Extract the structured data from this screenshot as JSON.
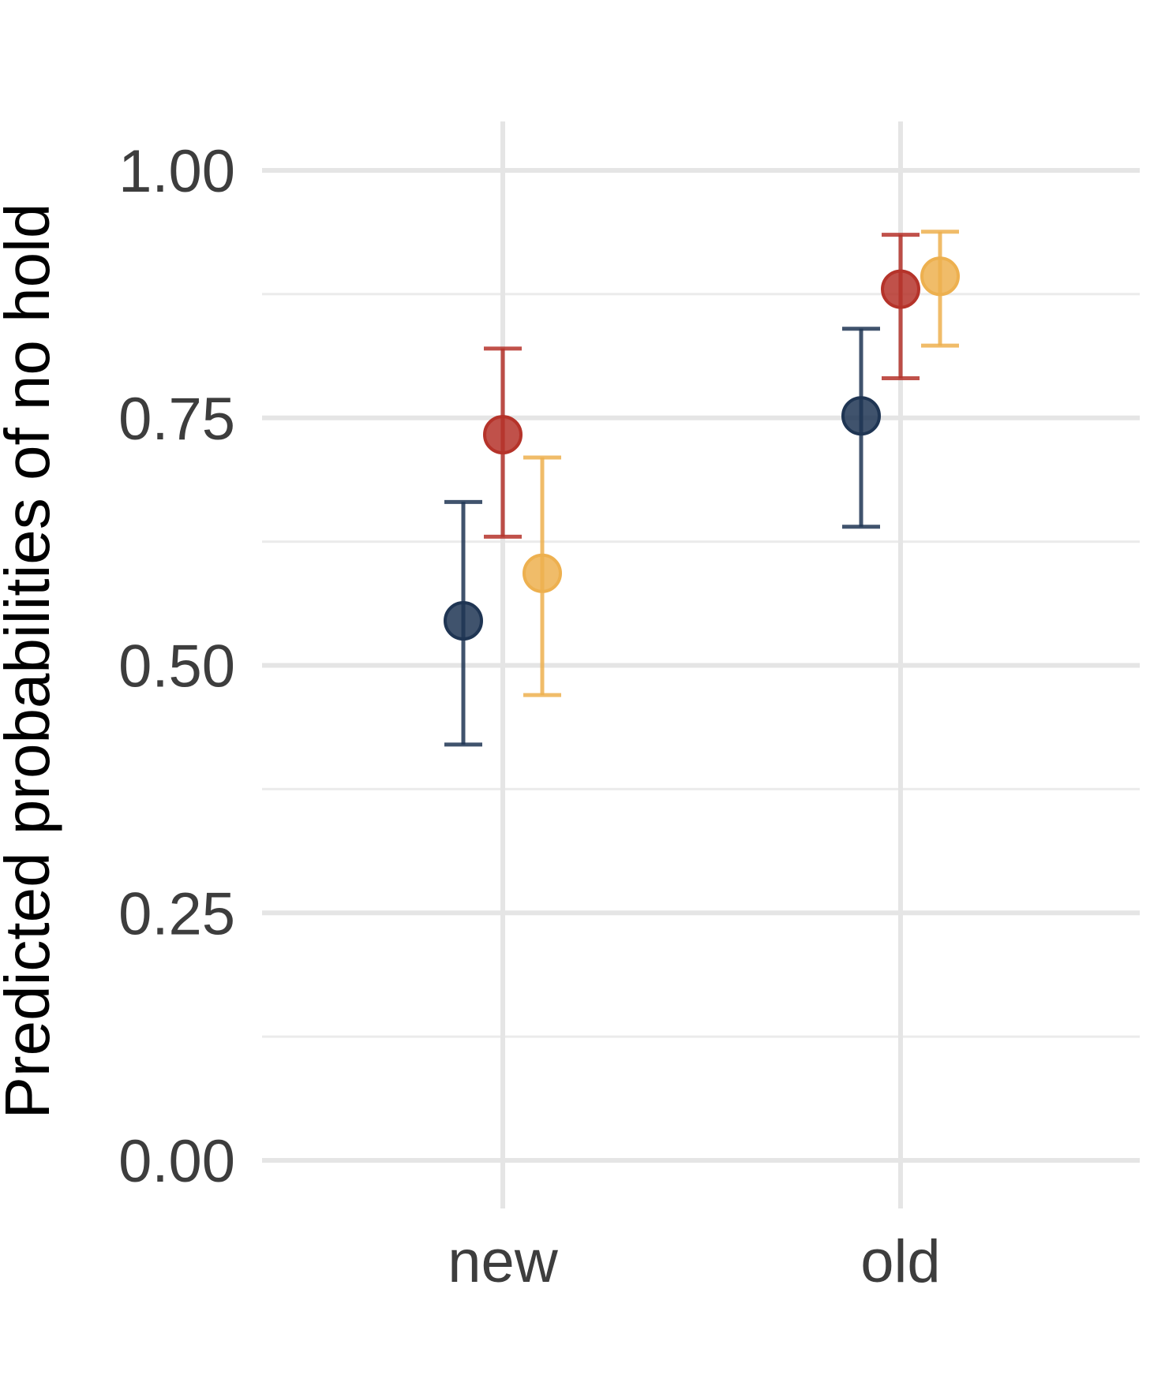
{
  "chart_data": {
    "type": "scatter",
    "subtype": "point-range",
    "ylabel": "Predicted probabilities of no hold",
    "xlabel": "",
    "categories": [
      "new",
      "old"
    ],
    "ylim": [
      0,
      1
    ],
    "y_ticks": [
      "0.00",
      "0.25",
      "0.50",
      "0.75",
      "1.00"
    ],
    "y_tick_values": [
      0,
      0.25,
      0.5,
      0.75,
      1.0
    ],
    "grid": true,
    "legend": "none",
    "series": [
      {
        "color": "#1f3553",
        "points": [
          {
            "x": "new",
            "y": 0.545,
            "ymin": 0.42,
            "ymax": 0.665
          },
          {
            "x": "old",
            "y": 0.752,
            "ymin": 0.64,
            "ymax": 0.84
          }
        ]
      },
      {
        "color": "#b5332a",
        "points": [
          {
            "x": "new",
            "y": 0.733,
            "ymin": 0.63,
            "ymax": 0.82
          },
          {
            "x": "old",
            "y": 0.88,
            "ymin": 0.79,
            "ymax": 0.935
          }
        ]
      },
      {
        "color": "#edb04f",
        "points": [
          {
            "x": "new",
            "y": 0.593,
            "ymin": 0.47,
            "ymax": 0.71
          },
          {
            "x": "old",
            "y": 0.893,
            "ymin": 0.823,
            "ymax": 0.938
          }
        ]
      }
    ]
  }
}
